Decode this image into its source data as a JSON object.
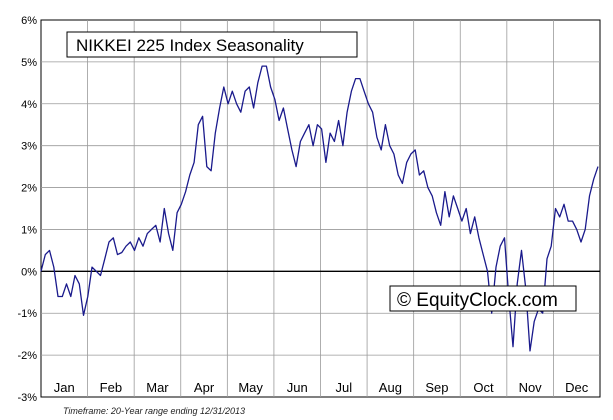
{
  "chart_data": {
    "type": "line",
    "title": "NIKKEI 225 Index Seasonality",
    "watermark": "© EquityClock.com",
    "footnote": "Timeframe: 20-Year range ending 12/31/2013",
    "ylim": [
      -3,
      6
    ],
    "y_ticks": [
      6,
      5,
      4,
      3,
      2,
      1,
      0,
      -1,
      -2,
      -3
    ],
    "y_tick_labels": [
      "6%",
      "5%",
      "4%",
      "3%",
      "2%",
      "1%",
      "0%",
      "-1%",
      "-2%",
      "-3%"
    ],
    "months": [
      "Jan",
      "Feb",
      "Mar",
      "Apr",
      "May",
      "Jun",
      "Jul",
      "Aug",
      "Sep",
      "Oct",
      "Nov",
      "Dec"
    ],
    "grid": true,
    "line_color": "#1a1a8c",
    "series": [
      {
        "values": [
          0,
          0.4,
          0.5,
          0.1,
          -0.6,
          -0.6,
          -0.3,
          -0.6,
          -0.1,
          -0.3,
          -1.05,
          -0.6,
          0.1,
          0.0,
          -0.1,
          0.3,
          0.7,
          0.8,
          0.4,
          0.45,
          0.6,
          0.7,
          0.5,
          0.8,
          0.6,
          0.9,
          1.0,
          1.1,
          0.7,
          1.5,
          0.9,
          0.5,
          1.4,
          1.6,
          1.9,
          2.3,
          2.6,
          3.5,
          3.7,
          2.5,
          2.4,
          3.3,
          3.9,
          4.4,
          4.0,
          4.3,
          4.0,
          3.8,
          4.3,
          4.4,
          3.9,
          4.5,
          4.9,
          4.9,
          4.4,
          4.1,
          3.6,
          3.9,
          3.4,
          2.9,
          2.5,
          3.1,
          3.3,
          3.5,
          3.0,
          3.5,
          3.4,
          2.6,
          3.3,
          3.1,
          3.6,
          3.0,
          3.8,
          4.3,
          4.6,
          4.6,
          4.3,
          4.0,
          3.8,
          3.2,
          2.9,
          3.5,
          3.0,
          2.8,
          2.3,
          2.1,
          2.6,
          2.8,
          2.9,
          2.3,
          2.4,
          2.0,
          1.8,
          1.4,
          1.1,
          1.9,
          1.3,
          1.8,
          1.5,
          1.2,
          1.5,
          0.9,
          1.3,
          0.8,
          0.4,
          0.0,
          -1.0,
          0.1,
          0.6,
          0.8,
          -0.6,
          -1.8,
          -0.3,
          0.5,
          -0.4,
          -1.9,
          -1.2,
          -0.9,
          -1.0,
          0.3,
          0.6,
          1.5,
          1.3,
          1.6,
          1.2,
          1.2,
          1.0,
          0.7,
          1.0,
          1.8,
          2.2,
          2.5
        ]
      }
    ]
  }
}
